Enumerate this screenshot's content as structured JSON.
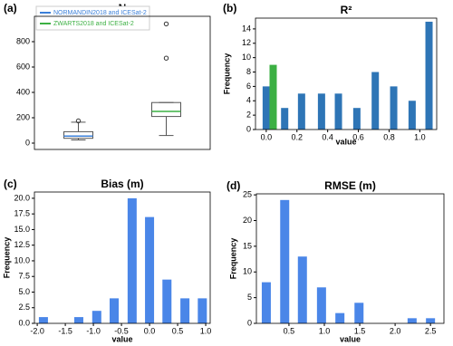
{
  "chart_data": [
    {
      "type": "box",
      "panel_label": "(a)",
      "title": "N",
      "ylim": [
        -50,
        1000
      ],
      "yticks": [
        0,
        200,
        400,
        600,
        800
      ],
      "xlim": [
        0.5,
        2.5
      ],
      "legend": "upper left",
      "series": [
        {
          "name": "NORMANDIN2018 and ICESat-2",
          "color": "#3a7fd8",
          "whislo": 25,
          "q1": 38,
          "med": 55,
          "q3": 90,
          "whishi": 165,
          "fliers": [
            175
          ]
        },
        {
          "name": "ZWARTS2018 and ICESat-2",
          "color": "#3cb043",
          "whislo": 60,
          "q1": 210,
          "med": 250,
          "q3": 320,
          "whishi": 320,
          "fliers": [
            670,
            940
          ]
        }
      ]
    },
    {
      "type": "bar",
      "panel_label": "(b)",
      "title": "R²",
      "xlabel": "value",
      "ylabel": "Frequency",
      "xlim": [
        -0.07,
        1.11
      ],
      "xticks": [
        {
          "value": 0,
          "label": "0.0"
        },
        0.2,
        0.4,
        0.6,
        0.8,
        {
          "value": 1,
          "label": "1.0"
        }
      ],
      "ylim": [
        0,
        15.5
      ],
      "yticks": [
        0,
        2,
        4,
        6,
        8,
        10,
        12,
        14
      ],
      "series": [
        {
          "color": "#2e75b6",
          "x": [
            0.0,
            0.12,
            0.23,
            0.36,
            0.47,
            0.59,
            0.71,
            0.83,
            0.95,
            1.06
          ],
          "values": [
            6,
            3,
            5,
            5,
            5,
            3,
            8,
            6,
            4,
            15
          ]
        },
        {
          "color": "#3cb043",
          "x": [
            0.045
          ],
          "values": [
            9
          ]
        }
      ]
    },
    {
      "type": "bar",
      "panel_label": "(c)",
      "title": "Bias (m)",
      "xlabel": "value",
      "ylabel": "Frequency",
      "xlim": [
        -2.05,
        1.08
      ],
      "xticks": [
        {
          "value": -2,
          "label": "-2.0"
        },
        -1.5,
        {
          "value": -1,
          "label": "-1.0"
        },
        -0.5,
        {
          "value": 0,
          "label": "0.0"
        },
        0.5,
        {
          "value": 1,
          "label": "1.0"
        }
      ],
      "ylim": [
        0,
        21
      ],
      "yticks": [
        {
          "value": 0,
          "label": "0.0"
        },
        2.5,
        {
          "value": 5,
          "label": "5.0"
        },
        7.5,
        {
          "value": 10,
          "label": "10.0"
        },
        12.5,
        {
          "value": 15,
          "label": "15.0"
        },
        17.5,
        {
          "value": 20,
          "label": "20.0"
        }
      ],
      "series": [
        {
          "color": "#4a86e8",
          "x": [
            -1.89,
            -1.26,
            -0.94,
            -0.63,
            -0.31,
            0.0,
            0.31,
            0.63,
            0.94
          ],
          "values": [
            1,
            1,
            2,
            4,
            20,
            17,
            7,
            4,
            4
          ]
        }
      ]
    },
    {
      "type": "bar",
      "panel_label": "(d)",
      "title": "RMSE (m)",
      "xlabel": "value",
      "ylabel": "Frequency",
      "xlim": [
        0.04,
        2.69
      ],
      "xticks": [
        0.5,
        {
          "value": 1,
          "label": "1.0"
        },
        1.5,
        {
          "value": 2,
          "label": "2.0"
        },
        2.5
      ],
      "ylim": [
        0,
        25.2
      ],
      "yticks": [
        0,
        5,
        10,
        15,
        20,
        25
      ],
      "series": [
        {
          "color": "#4a86e8",
          "x": [
            0.18,
            0.44,
            0.69,
            0.96,
            1.22,
            1.49,
            2.24,
            2.5
          ],
          "values": [
            8,
            24,
            13,
            7,
            2,
            4,
            1,
            1
          ]
        }
      ]
    }
  ]
}
